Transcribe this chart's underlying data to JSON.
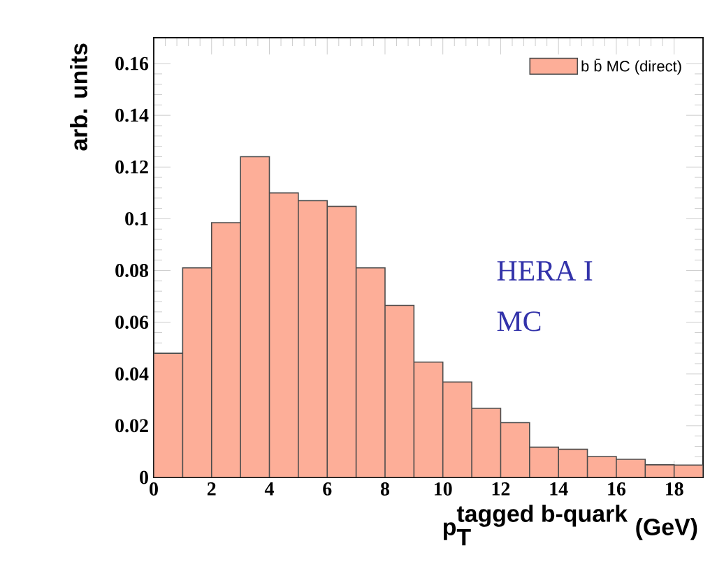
{
  "chart_data": {
    "type": "histogram",
    "bins": [
      0,
      1,
      2,
      3,
      4,
      5,
      6,
      7,
      8,
      9,
      10,
      11,
      12,
      13,
      14,
      15,
      16,
      17,
      18,
      19
    ],
    "series": [
      {
        "name": "b b̄ MC (direct)",
        "color": "#fdae98",
        "values": [
          0.048,
          0.081,
          0.0985,
          0.124,
          0.11,
          0.107,
          0.1048,
          0.081,
          0.0665,
          0.0446,
          0.0369,
          0.0267,
          0.0212,
          0.0117,
          0.0109,
          0.0081,
          0.007,
          0.0049,
          0.0048
        ]
      }
    ],
    "xlim": [
      0,
      19
    ],
    "ylim": [
      0,
      0.17
    ],
    "xticks": [
      0,
      2,
      4,
      6,
      8,
      10,
      12,
      14,
      16,
      18
    ],
    "yticks": [
      0,
      0.02,
      0.04,
      0.06,
      0.08,
      0.1,
      0.12,
      0.14,
      0.16
    ],
    "xlabel": "\\textbf{p}_{\\textbf{T}}^{\\textbf{tagged b-quark}}\\;\\textbf{(GeV)}",
    "ylabel": "arb. units",
    "annotations": [
      "HERA I",
      "MC"
    ],
    "legend": "top right",
    "grid": false
  }
}
